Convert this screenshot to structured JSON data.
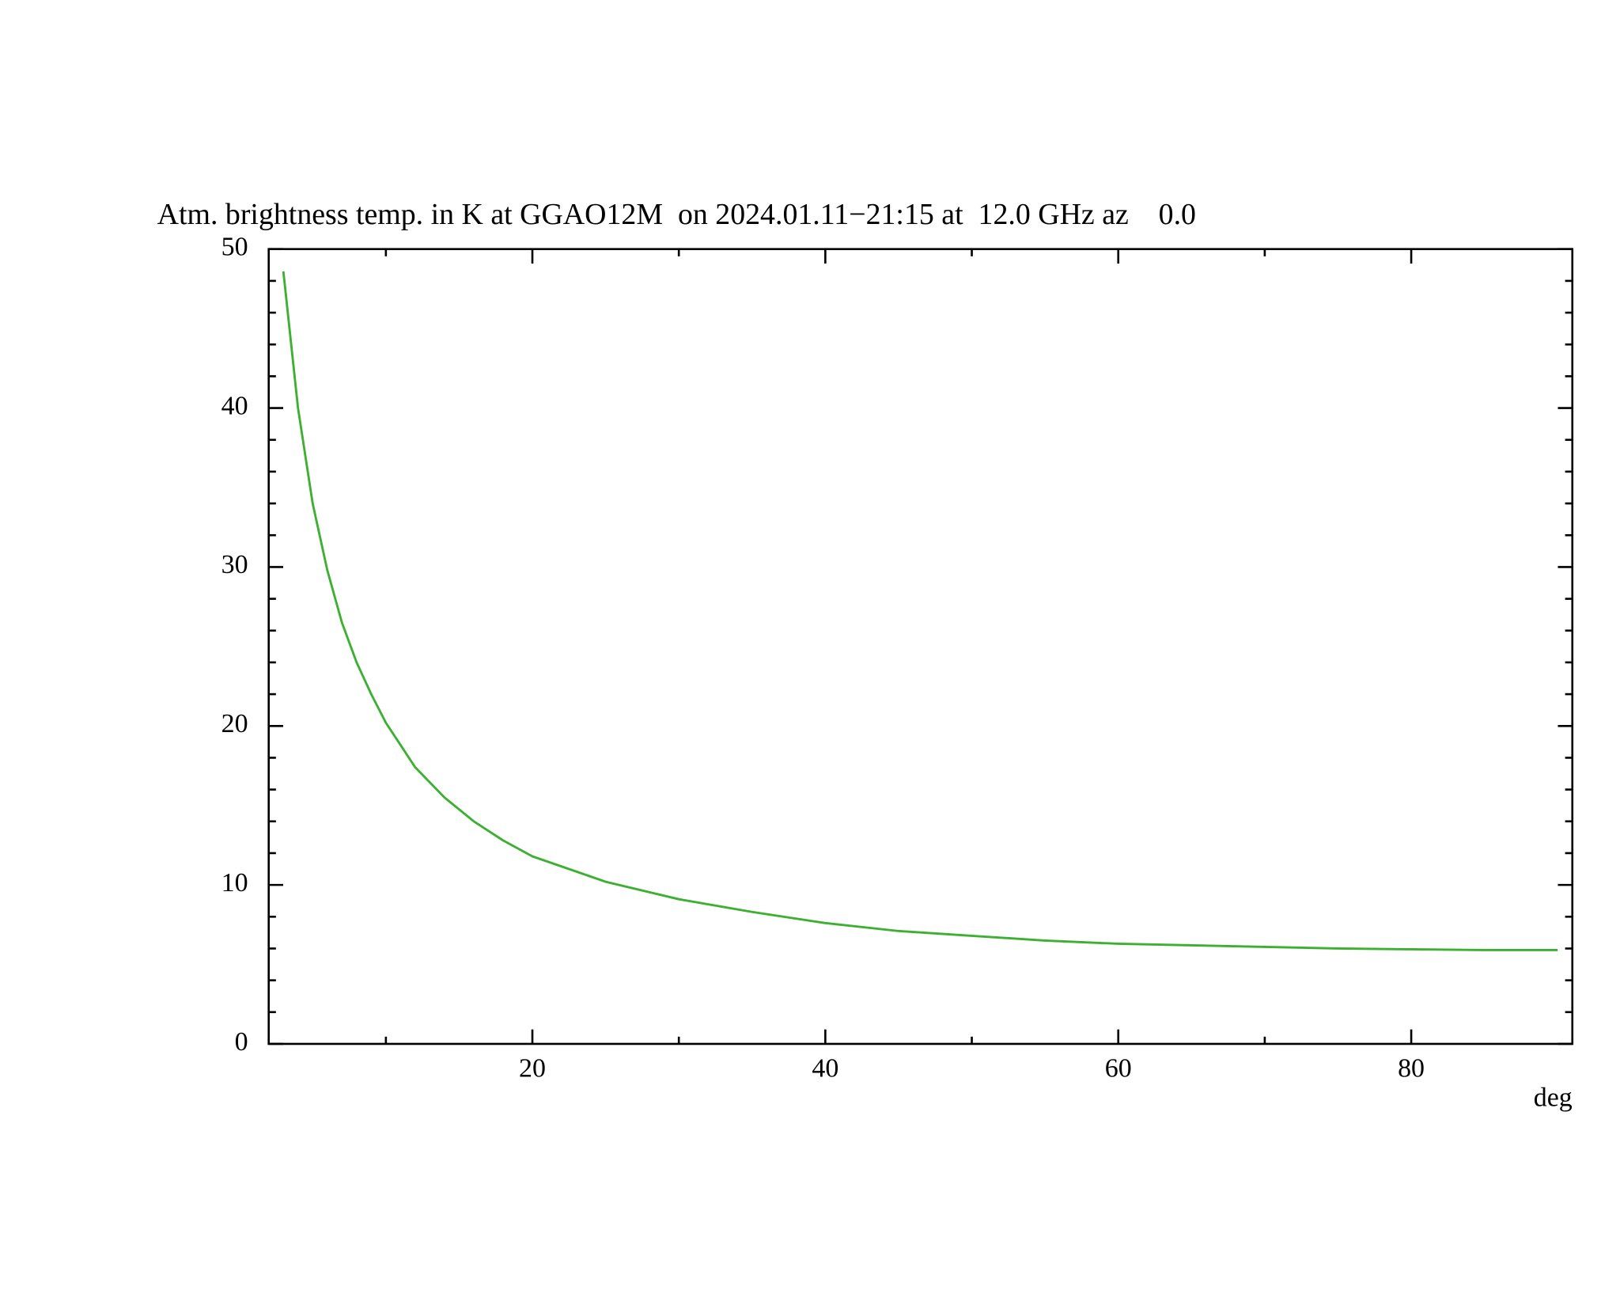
{
  "chart_data": {
    "type": "line",
    "title": "Atm. brightness temp. in K at GGAO12M  on 2024.01.11−21:15 at  12.0 GHz az    0.0",
    "x_label": "deg",
    "x": [
      3,
      4,
      5,
      6,
      7,
      8,
      9,
      10,
      12,
      14,
      16,
      18,
      20,
      25,
      30,
      35,
      40,
      45,
      50,
      55,
      60,
      65,
      70,
      75,
      80,
      85,
      90
    ],
    "series": [
      {
        "color": "#3cb030",
        "values": [
          48.6,
          40,
          34,
          29.8,
          26.5,
          24,
          22,
          20.2,
          17.4,
          15.5,
          14.0,
          12.8,
          11.8,
          10.2,
          9.1,
          8.3,
          7.6,
          7.1,
          6.8,
          6.5,
          6.3,
          6.2,
          6.1,
          6.0,
          5.95,
          5.9,
          5.9
        ]
      }
    ],
    "xlim": [
      2,
      91
    ],
    "ylim": [
      0,
      50
    ],
    "xticks": [
      20,
      40,
      60,
      80
    ],
    "yticks": [
      0,
      10,
      20,
      30,
      40,
      50
    ],
    "xticks_minor": [
      10,
      30,
      50,
      70
    ],
    "yticks_minor": [
      2,
      4,
      6,
      8,
      12,
      14,
      16,
      18,
      22,
      24,
      26,
      28,
      32,
      34,
      36,
      38,
      42,
      44,
      46,
      48
    ]
  }
}
